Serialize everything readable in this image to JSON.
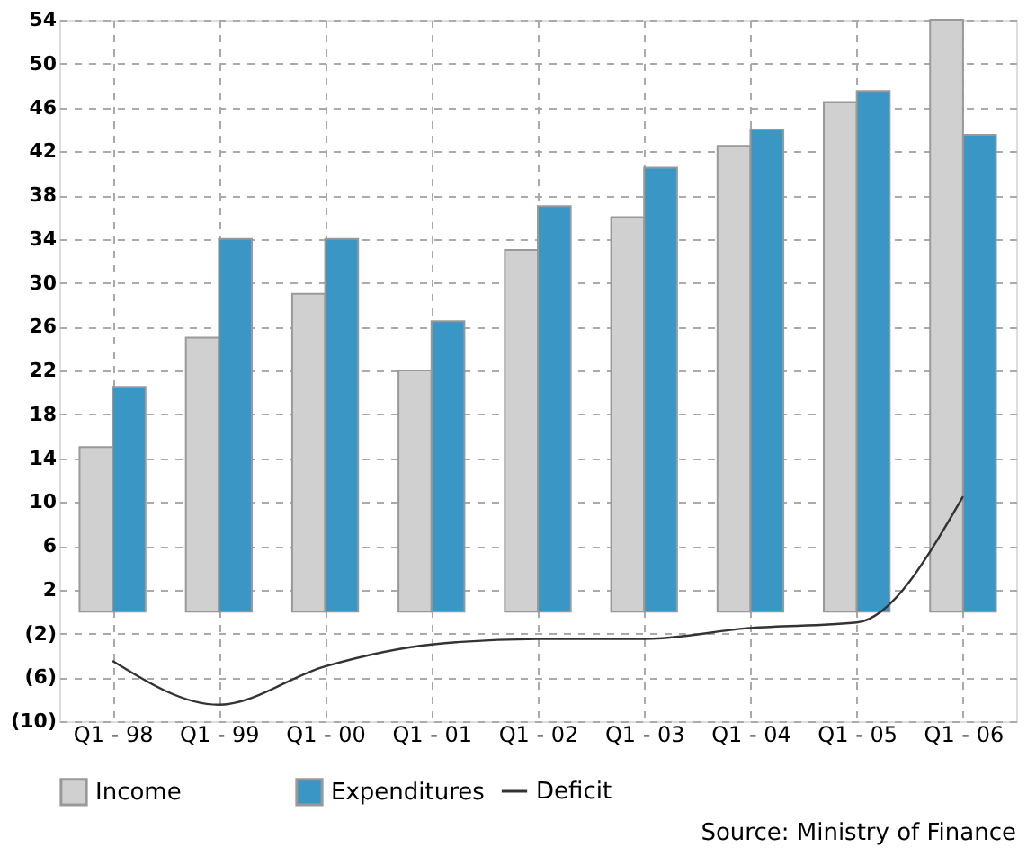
{
  "chart_data": {
    "type": "bar",
    "categories": [
      "Q1 - 98",
      "Q1 - 99",
      "Q1 - 00",
      "Q1 - 01",
      "Q1 - 02",
      "Q1 - 03",
      "Q1 - 04",
      "Q1 - 05",
      "Q1 - 06"
    ],
    "series": [
      {
        "name": "Income",
        "color": "#d0d0d0",
        "values": [
          15,
          25,
          29,
          22,
          33,
          36,
          42.5,
          46.5,
          54
        ]
      },
      {
        "name": "Expenditures",
        "color": "#3a96c4",
        "values": [
          20.5,
          34,
          34,
          26.5,
          37,
          40.5,
          44,
          47.5,
          43.5
        ]
      },
      {
        "name": "Deficit",
        "type": "line",
        "color": "#333333",
        "values": [
          -4.5,
          -8.5,
          -5,
          -3,
          -2.5,
          -2.5,
          -1.5,
          -1,
          10.5
        ]
      }
    ],
    "ylim": [
      -10,
      54
    ],
    "yticks": [
      54,
      50,
      46,
      42,
      38,
      34,
      30,
      26,
      22,
      18,
      14,
      10,
      6,
      2,
      {
        "value": -2,
        "label": "(2)"
      },
      {
        "value": -6,
        "label": "(6)"
      },
      {
        "value": -10,
        "label": "(10)"
      }
    ],
    "grid": true,
    "legend": "bottom",
    "line_style": "solid",
    "annotations": [
      "Source: Ministry of Finance"
    ]
  }
}
